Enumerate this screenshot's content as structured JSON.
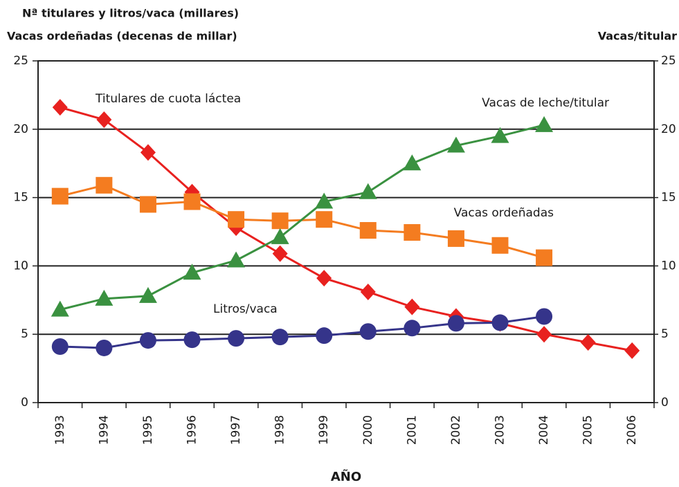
{
  "chart_data": {
    "type": "line",
    "y_label_lines": [
      "Nª titulares y litros/vaca (millares)",
      "Vacas ordeñadas (decenas de millar)"
    ],
    "y2_label": "Vacas/titular",
    "x_label": "AÑO",
    "categories": [
      "1993",
      "1994",
      "1995",
      "1996",
      "1997",
      "1998",
      "1999",
      "2000",
      "2001",
      "2002",
      "2003",
      "2004",
      "2005",
      "2006"
    ],
    "ylim": [
      0,
      25
    ],
    "yticks": [
      0,
      5,
      10,
      15,
      20,
      25
    ],
    "y2lim": [
      0,
      25
    ],
    "y2ticks": [
      0,
      5,
      10,
      15,
      20,
      25
    ],
    "grid": true,
    "series": [
      {
        "name": "Titulares de cuota láctea",
        "color": "#e8211f",
        "marker": "diamond",
        "values": [
          21.6,
          20.7,
          18.3,
          15.4,
          12.8,
          10.9,
          9.1,
          8.1,
          7.0,
          6.3,
          5.8,
          5.0,
          4.4,
          3.8
        ]
      },
      {
        "name": "Vacas ordeñadas",
        "color": "#f47c20",
        "marker": "square",
        "values": [
          15.1,
          15.9,
          14.5,
          14.7,
          13.4,
          13.3,
          13.4,
          12.6,
          12.45,
          12.0,
          11.5,
          10.6,
          null,
          null
        ]
      },
      {
        "name": "Vacas de leche/titular",
        "color": "#3a9140",
        "marker": "triangle",
        "axis": "y2",
        "values": [
          6.8,
          7.6,
          7.8,
          9.5,
          10.4,
          12.1,
          14.7,
          15.4,
          17.5,
          18.8,
          19.5,
          20.3,
          null,
          null
        ]
      },
      {
        "name": "Litros/vaca",
        "color": "#35348a",
        "marker": "circle",
        "values": [
          4.1,
          4.0,
          4.55,
          4.6,
          4.7,
          4.8,
          4.9,
          5.2,
          5.45,
          5.8,
          5.85,
          6.3,
          null,
          null
        ]
      }
    ]
  }
}
